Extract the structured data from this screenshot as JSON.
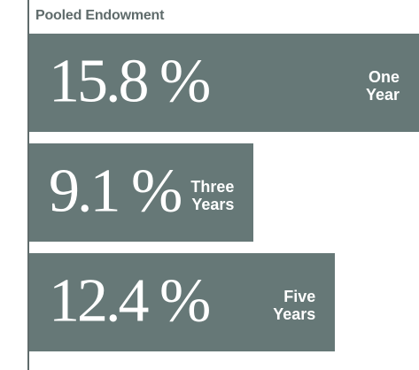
{
  "chart_data": {
    "type": "bar",
    "orientation": "horizontal",
    "title": "Pooled Endowment",
    "categories": [
      "One Year",
      "Three Years",
      "Five Years"
    ],
    "values": [
      15.8,
      9.1,
      12.4
    ],
    "value_labels": [
      "15.8 %",
      "9.1 %",
      "12.4 %"
    ],
    "color": "#667877"
  }
}
